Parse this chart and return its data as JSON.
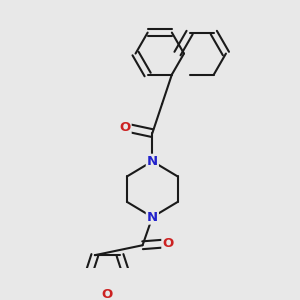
{
  "bg_color": "#e8e8e8",
  "bond_color": "#1a1a1a",
  "nitrogen_color": "#2222cc",
  "oxygen_color": "#cc2222",
  "bond_width": 1.5,
  "font_size_atom": 9.5,
  "xlim": [
    -2.0,
    3.2
  ],
  "ylim": [
    -3.8,
    3.0
  ]
}
